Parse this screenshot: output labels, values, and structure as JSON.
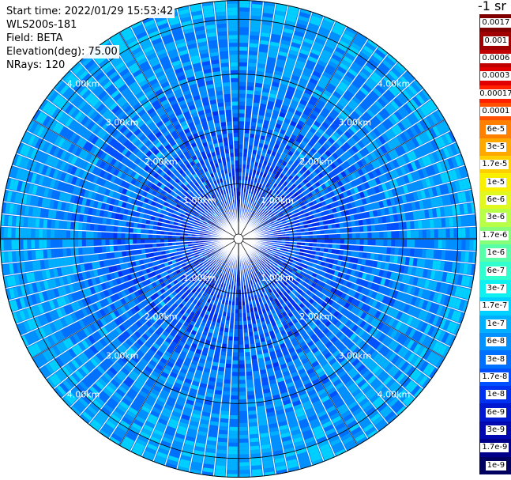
{
  "info": {
    "start_time": "Start time: 2022/01/29 15:53:42",
    "instrument": "WLS200s-181",
    "field": "Field: BETA",
    "elevation": "Elevation(deg): 75.00",
    "nrays": "NRays: 120"
  },
  "colorbar": {
    "unit_title": "-1 sr",
    "levels": [
      {
        "label": "0.0017",
        "color": "#800000"
      },
      {
        "label": "0.001",
        "color": "#a00000"
      },
      {
        "label": "0.0006",
        "color": "#c00000"
      },
      {
        "label": "0.0003",
        "color": "#e00000"
      },
      {
        "label": "0.00017",
        "color": "#ff2000"
      },
      {
        "label": "0.0001",
        "color": "#ff5000"
      },
      {
        "label": "6e-5",
        "color": "#ff8000"
      },
      {
        "label": "3e-5",
        "color": "#ffa800"
      },
      {
        "label": "1.7e-5",
        "color": "#ffd000"
      },
      {
        "label": "1e-5",
        "color": "#f8f000"
      },
      {
        "label": "6e-6",
        "color": "#e0f820"
      },
      {
        "label": "3e-6",
        "color": "#b8ff48"
      },
      {
        "label": "1.7e-6",
        "color": "#88ff78"
      },
      {
        "label": "1e-6",
        "color": "#58ffa8"
      },
      {
        "label": "6e-7",
        "color": "#30ffd0"
      },
      {
        "label": "3e-7",
        "color": "#10f0f0"
      },
      {
        "label": "1.7e-7",
        "color": "#00d0ff"
      },
      {
        "label": "1e-7",
        "color": "#00b0ff"
      },
      {
        "label": "6e-8",
        "color": "#0090ff"
      },
      {
        "label": "3e-8",
        "color": "#0070ff"
      },
      {
        "label": "1.7e-8",
        "color": "#0050ff"
      },
      {
        "label": "1e-8",
        "color": "#0030f0"
      },
      {
        "label": "6e-9",
        "color": "#0018d0"
      },
      {
        "label": "3e-9",
        "color": "#0008b0"
      },
      {
        "label": "1.7e-9",
        "color": "#00008a"
      },
      {
        "label": "1e-9",
        "color": "#000060"
      }
    ]
  },
  "chart_data": {
    "type": "heatmap",
    "subtype": "polar-ppi",
    "field": "BETA",
    "elevation_deg": 75.0,
    "n_rays": 120,
    "range_rings_km": [
      1,
      2,
      3,
      4
    ],
    "ring_labels": [
      "1.00km",
      "2.00km",
      "3.00km",
      "4.00km"
    ],
    "scale": "log",
    "value_range": [
      1e-09,
      0.0017
    ],
    "description_values": {
      "near_center_typical": 1.7e-08,
      "outer_typical": 1e-07
    }
  }
}
